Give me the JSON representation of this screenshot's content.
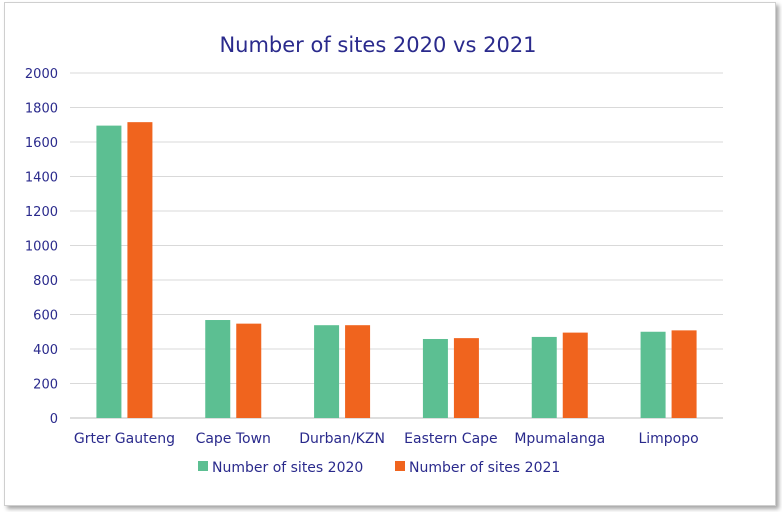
{
  "chart_data": {
    "type": "bar",
    "title": "Number of sites 2020 vs 2021",
    "categories": [
      "Grter Gauteng",
      "Cape Town",
      "Durban/KZN",
      "Eastern Cape",
      "Mpumalanga",
      "Limpopo"
    ],
    "series": [
      {
        "name": "Number of sites 2020",
        "values": [
          1695,
          568,
          538,
          458,
          470,
          500
        ],
        "color": "#5cbf92"
      },
      {
        "name": "Number of sites 2021",
        "values": [
          1715,
          547,
          538,
          463,
          495,
          508
        ],
        "color": "#f0641e"
      }
    ],
    "ylim": [
      0,
      2000
    ],
    "yticks": [
      "0",
      "200",
      "400",
      "600",
      "800",
      "1000",
      "1200",
      "1400",
      "1600",
      "1800",
      "2000"
    ],
    "grid": true,
    "legend": "bottom"
  }
}
